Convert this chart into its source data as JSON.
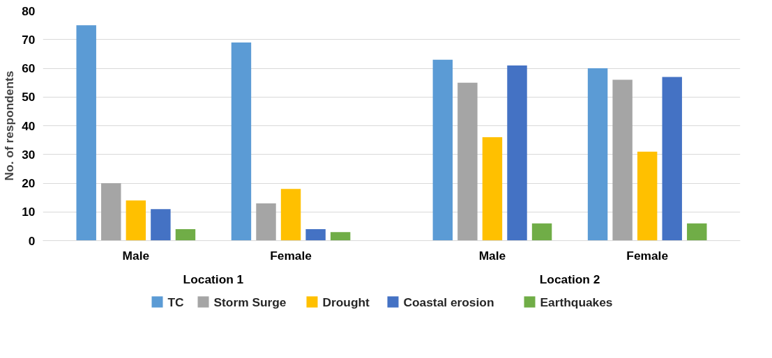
{
  "chart_data": {
    "type": "bar",
    "ylabel": "No. of respondents",
    "categories": [
      "Male",
      "Female",
      "Male",
      "Female"
    ],
    "annotations": [
      "Location 1",
      "Location 2"
    ],
    "series": [
      {
        "name": "TC",
        "color": "#5b9bd5",
        "values": [
          75,
          69,
          63,
          60
        ]
      },
      {
        "name": "Storm Surge",
        "color": "#a5a5a5",
        "values": [
          20,
          13,
          55,
          56
        ]
      },
      {
        "name": "Drought",
        "color": "#ffc000",
        "values": [
          14,
          18,
          36,
          31
        ]
      },
      {
        "name": "Coastal erosion",
        "color": "#4472c4",
        "values": [
          11,
          4,
          61,
          57
        ]
      },
      {
        "name": "Earthquakes",
        "color": "#70ad47",
        "values": [
          4,
          3,
          6,
          6
        ]
      }
    ],
    "ylim": [
      0,
      80
    ],
    "yticks": [
      0,
      10,
      20,
      30,
      40,
      50,
      60,
      70,
      80
    ],
    "grid": "y",
    "legend": "bottom"
  }
}
